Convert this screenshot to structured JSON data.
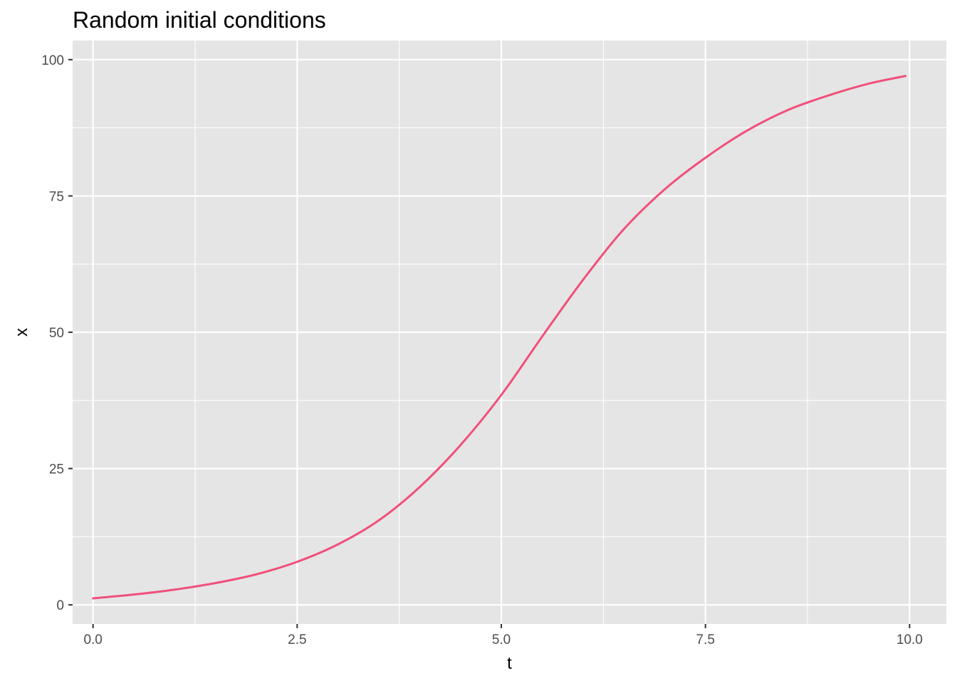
{
  "chart_data": {
    "type": "line",
    "title": "Random initial conditions",
    "xlabel": "t",
    "ylabel": "x",
    "xlim": [
      -0.25,
      10.45
    ],
    "ylim": [
      -3.5,
      103.5
    ],
    "x_ticks": [
      0.0,
      2.5,
      5.0,
      7.5,
      10.0
    ],
    "x_tick_labels": [
      "0.0",
      "2.5",
      "5.0",
      "7.5",
      "10.0"
    ],
    "y_ticks": [
      0,
      25,
      50,
      75,
      100
    ],
    "y_tick_labels": [
      "0",
      "25",
      "50",
      "75",
      "100"
    ],
    "grid": true,
    "legend": "none",
    "colors": {
      "panel_background": "#e5e5e5",
      "grid_line": "#ffffff",
      "series_line": "#f0507a",
      "tick_mark": "#333333"
    },
    "series": [
      {
        "x": [
          0,
          0.5,
          1.0,
          1.5,
          2.0,
          2.5,
          3.0,
          3.5,
          4.0,
          4.5,
          5.0,
          5.5,
          6.0,
          6.5,
          7.0,
          7.5,
          8.0,
          8.5,
          9.0,
          9.5,
          9.95
        ],
        "y": [
          1.2,
          1.9,
          2.8,
          4.0,
          5.6,
          7.9,
          11.1,
          15.5,
          21.6,
          29.3,
          38.5,
          49.2,
          59.6,
          68.9,
          76.2,
          82.0,
          86.9,
          90.7,
          93.4,
          95.6,
          97.0
        ]
      }
    ]
  }
}
